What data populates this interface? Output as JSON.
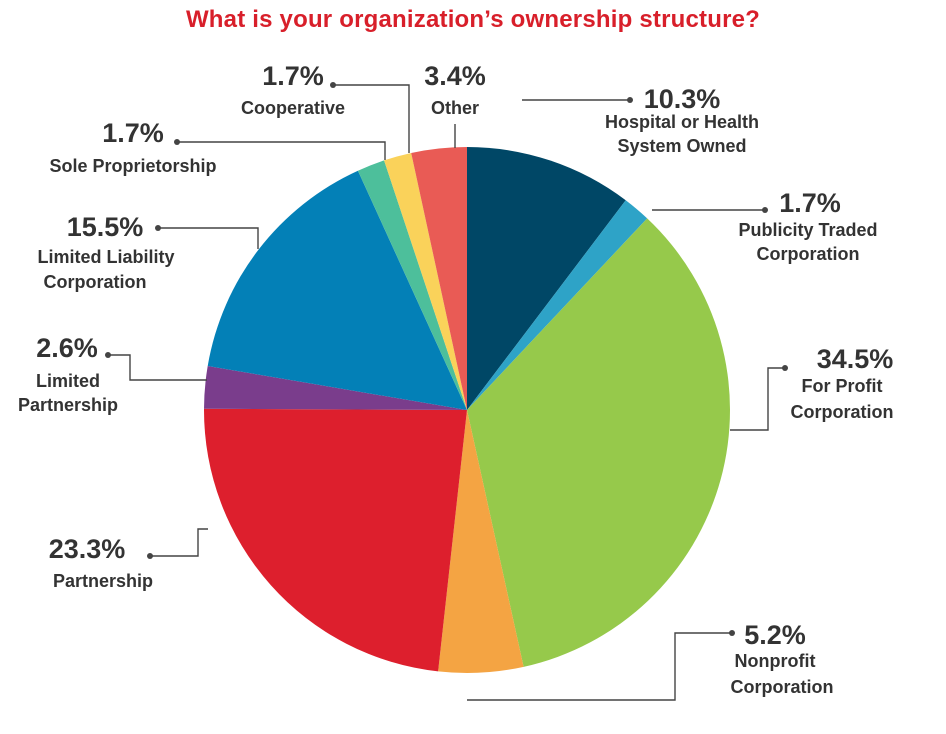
{
  "title": "What is your organization’s ownership structure?",
  "chart_data": {
    "type": "pie",
    "title": "What is your organization’s ownership structure?",
    "slices": [
      {
        "label": "Hospital or Health System Owned",
        "label_lines": [
          "Hospital or Health",
          "System Owned"
        ],
        "pct_text": "10.3%",
        "value": 10.3,
        "color": "#004766"
      },
      {
        "label": "Publicity Traded Corporation",
        "label_lines": [
          "Publicity Traded",
          "Corporation"
        ],
        "pct_text": "1.7%",
        "value": 1.7,
        "color": "#2ea3c7"
      },
      {
        "label": "For Profit Corporation",
        "label_lines": [
          "For Profit",
          "Corporation"
        ],
        "pct_text": "34.5%",
        "value": 34.5,
        "color": "#96c94b"
      },
      {
        "label": "Nonprofit Corporation",
        "label_lines": [
          "Nonprofit",
          "Corporation"
        ],
        "pct_text": "5.2%",
        "value": 5.2,
        "color": "#f4a443"
      },
      {
        "label": "Partnership",
        "label_lines": [
          "Partnership"
        ],
        "pct_text": "23.3%",
        "value": 23.3,
        "color": "#dd1f2d"
      },
      {
        "label": "Limited Partnership",
        "label_lines": [
          "Limited",
          "Partnership"
        ],
        "pct_text": "2.6%",
        "value": 2.6,
        "color": "#7a3d8c"
      },
      {
        "label": "Limited Liability Corporation",
        "label_lines": [
          "Limited Liability",
          "Corporation"
        ],
        "pct_text": "15.5%",
        "value": 15.5,
        "color": "#0380b7"
      },
      {
        "label": "Sole Proprietorship",
        "label_lines": [
          "Sole Proprietorship"
        ],
        "pct_text": "1.7%",
        "value": 1.7,
        "color": "#4dbf9b"
      },
      {
        "label": "Cooperative",
        "label_lines": [
          "Cooperative"
        ],
        "pct_text": "1.7%",
        "value": 1.7,
        "color": "#fad25a"
      },
      {
        "label": "Other",
        "label_lines": [
          "Other"
        ],
        "pct_text": "3.4%",
        "value": 3.4,
        "color": "#e95b55"
      }
    ],
    "start_direction": "top",
    "direction": "clockwise",
    "legend": "none"
  }
}
